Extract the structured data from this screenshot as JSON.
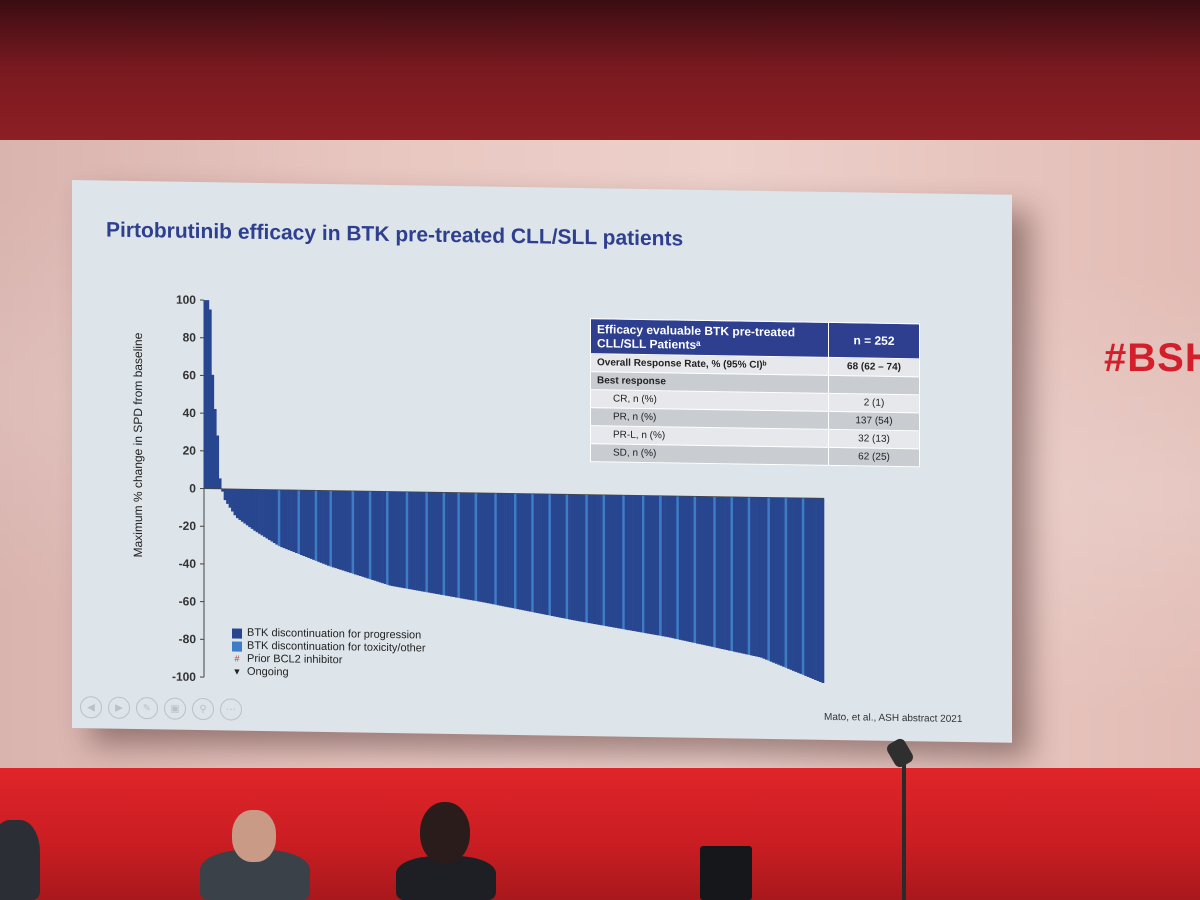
{
  "hashtag": "#BSH",
  "slide": {
    "title": "Pirtobrutinib efficacy in BTK pre-treated CLL/SLL patients",
    "citation": "Mato, et al., ASH abstract 2021",
    "nav_icons": [
      "prev-icon",
      "next-icon",
      "pen-icon",
      "slides-icon",
      "zoom-icon",
      "more-icon"
    ]
  },
  "chart_data": {
    "type": "bar",
    "subtype": "waterfall",
    "ylabel": "Maximum % change in SPD from baseline",
    "xlabel": "",
    "ylim": [
      -100,
      100
    ],
    "yticks": [
      100,
      80,
      60,
      40,
      20,
      0,
      -20,
      -40,
      -60,
      -80,
      -100
    ],
    "n_bars": 252,
    "series": [
      {
        "name": "BTK discontinuation for progression",
        "color": "#27468f"
      },
      {
        "name": "BTK discontinuation for toxicity/other",
        "color": "#3f7cc6"
      }
    ],
    "waterfall_profile": {
      "percentile": [
        0,
        0.004,
        0.008,
        0.012,
        0.016,
        0.02,
        0.024,
        0.03,
        0.05,
        0.08,
        0.12,
        0.2,
        0.3,
        0.45,
        0.6,
        0.75,
        0.9,
        1.0
      ],
      "value": [
        100,
        100,
        95,
        60,
        42,
        28,
        5,
        -5,
        -15,
        -22,
        -30,
        -40,
        -50,
        -58,
        -67,
        -75,
        -85,
        -98
      ]
    },
    "legend": {
      "items": [
        {
          "label": "BTK discontinuation for progression",
          "marker": "square",
          "color": "#27468f"
        },
        {
          "label": "BTK discontinuation for toxicity/other",
          "marker": "square",
          "color": "#3f7cc6"
        },
        {
          "label": "Prior BCL2 inhibitor",
          "marker": "#",
          "color": "#c0392b"
        },
        {
          "label": "Ongoing",
          "marker": "▼",
          "color": "#222222"
        }
      ],
      "position": "bottom-left"
    },
    "grid": false
  },
  "table": {
    "header_label": "Efficacy evaluable BTK pre-treated CLL/SLL Patientsᵃ",
    "header_value": "n = 252",
    "rows": [
      {
        "label": "Overall Response Rate, % (95% CI)ᵇ",
        "value": "68 (62 – 74)",
        "style": "bold"
      },
      {
        "label": "Best response",
        "value": "",
        "style": "section"
      },
      {
        "label": "CR, n (%)",
        "value": "2 (1)",
        "style": "indent"
      },
      {
        "label": "PR, n (%)",
        "value": "137 (54)",
        "style": "indent"
      },
      {
        "label": "PR-L, n (%)",
        "value": "32 (13)",
        "style": "indent"
      },
      {
        "label": "SD, n (%)",
        "value": "62 (25)",
        "style": "indent"
      }
    ]
  }
}
